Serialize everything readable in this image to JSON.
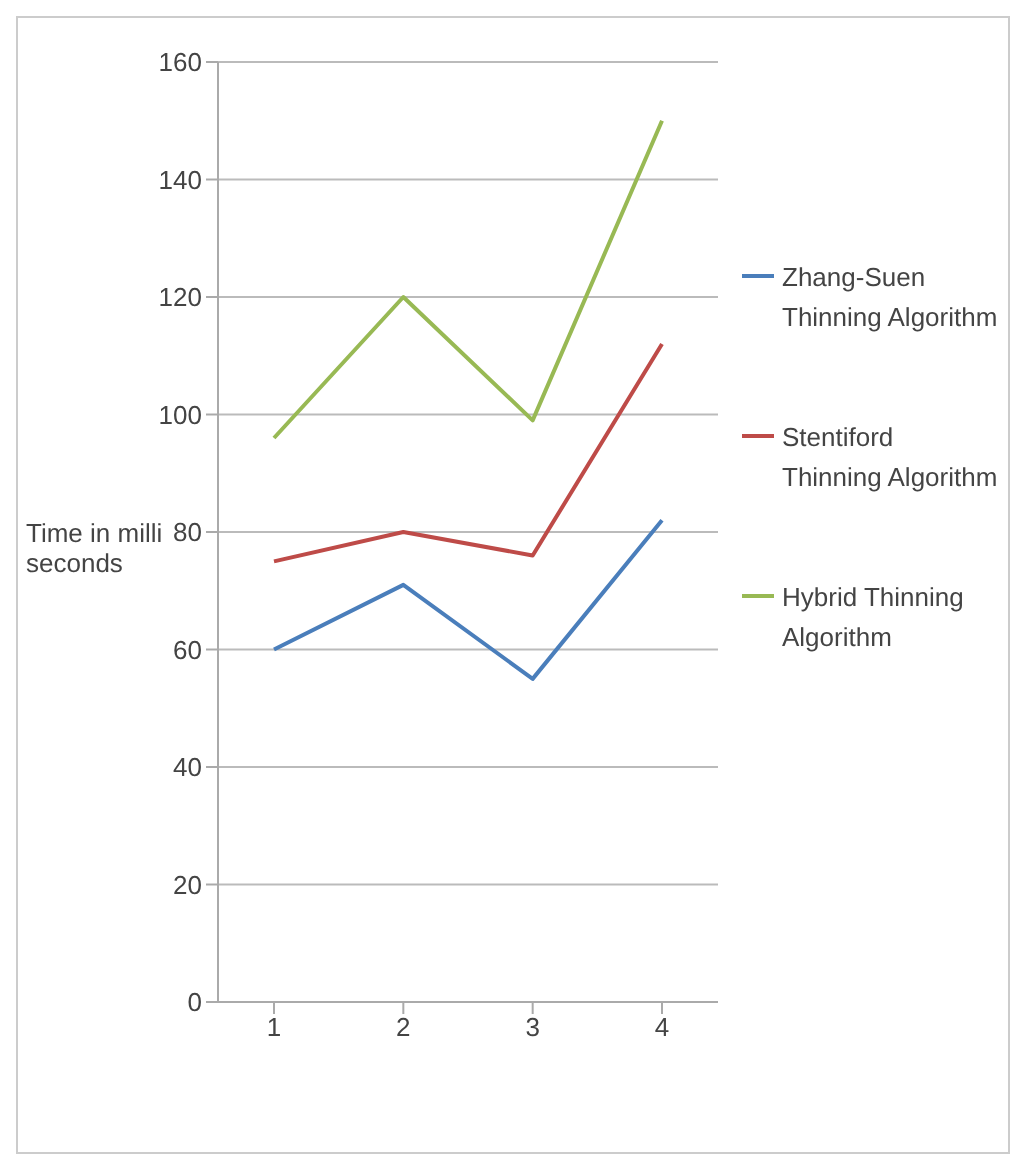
{
  "chart_data": {
    "type": "line",
    "ylabel": "Time in milliseconds",
    "categories": [
      "1",
      "2",
      "3",
      "4"
    ],
    "series": [
      {
        "name": "Zhang-Suen Thinning Algorithm",
        "color": "#4a7ebb",
        "values": [
          60,
          71,
          55,
          82
        ]
      },
      {
        "name": "Stentiford Thinning Algorithm",
        "color": "#be4b48",
        "values": [
          75,
          80,
          76,
          112
        ]
      },
      {
        "name": "Hybrid Thinning Algorithm",
        "color": "#98b954",
        "values": [
          96,
          120,
          99,
          150
        ]
      }
    ],
    "ylim": [
      0,
      160
    ],
    "yticks": [
      0,
      20,
      40,
      60,
      80,
      100,
      120,
      140,
      160
    ],
    "grid": "y",
    "legend": "right",
    "marker": "none",
    "line_style": "solid"
  }
}
